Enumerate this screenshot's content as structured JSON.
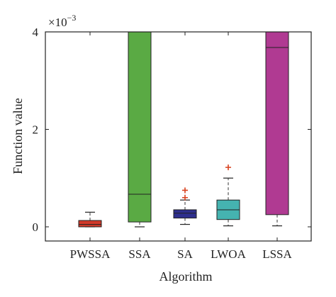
{
  "chart_data": {
    "type": "boxplot",
    "multiplier": "×10",
    "multiplier_exponent": "−3",
    "xlabel": "Algorithm",
    "ylabel": "Function value",
    "ylim": [
      0,
      4
    ],
    "yticks": [
      0,
      2,
      4
    ],
    "grid": false,
    "categories": [
      "PWSSA",
      "SSA",
      "SA",
      "LWOA",
      "LSSA"
    ],
    "boxes": [
      {
        "category": "PWSSA",
        "color": "#d23a2a",
        "q1": 0.0,
        "median": 0.05,
        "q3": 0.13,
        "whisker_low": 0.0,
        "whisker_high": 0.3,
        "outliers": []
      },
      {
        "category": "SSA",
        "color": "#5aaa44",
        "q1": 0.1,
        "median": 0.67,
        "q3": 4.0,
        "whisker_low": 0.0,
        "whisker_high": 4.0,
        "outliers": []
      },
      {
        "category": "SA",
        "color": "#2e2f8e",
        "q1": 0.18,
        "median": 0.28,
        "q3": 0.35,
        "whisker_low": 0.05,
        "whisker_high": 0.55,
        "outliers": [
          0.6,
          0.75
        ]
      },
      {
        "category": "LWOA",
        "color": "#45b3b0",
        "q1": 0.15,
        "median": 0.35,
        "q3": 0.55,
        "whisker_low": 0.02,
        "whisker_high": 1.0,
        "outliers": [
          1.22
        ]
      },
      {
        "category": "LSSA",
        "color": "#b03a92",
        "q1": 0.25,
        "median": 3.68,
        "q3": 4.0,
        "whisker_low": 0.02,
        "whisker_high": 4.0,
        "outliers": []
      }
    ],
    "outlier_color": "#d8421f"
  }
}
